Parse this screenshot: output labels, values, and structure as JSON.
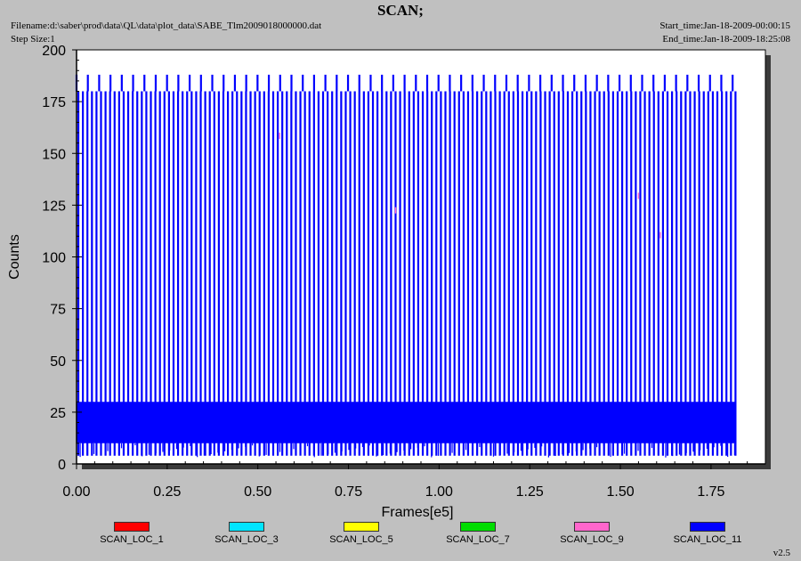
{
  "header": {
    "title": "SCAN;",
    "filename": "Filename:d:\\saber\\prod\\data\\QL\\data\\plot_data\\SABE_Tlm2009018000000.dat",
    "step_size": "Step Size:1",
    "start_time": "Start_time:Jan-18-2009-00:00:15",
    "end_time": "End_time:Jan-18-2009-18:25:08"
  },
  "version": "v2.5",
  "chart_data": {
    "type": "line",
    "title": "SCAN;",
    "xlabel": "Frames[e5]",
    "ylabel": "Counts",
    "xlim": [
      0,
      1.9
    ],
    "ylim": [
      0,
      200
    ],
    "x_ticks": [
      "0.00",
      "0.25",
      "0.50",
      "0.75",
      "1.00",
      "1.25",
      "1.50",
      "1.75"
    ],
    "x_tick_values": [
      0,
      0.25,
      0.5,
      0.75,
      1.0,
      1.25,
      1.5,
      1.75
    ],
    "y_ticks": [
      "0",
      "25",
      "50",
      "75",
      "100",
      "125",
      "150",
      "175",
      "200"
    ],
    "y_tick_values": [
      0,
      25,
      50,
      75,
      100,
      125,
      150,
      175,
      200
    ],
    "grid": false,
    "legend_position": "bottom",
    "data_extent_x": [
      0,
      1.82
    ],
    "series": [
      {
        "name": "SCAN_LOC_1",
        "color": "#ff0000"
      },
      {
        "name": "SCAN_LOC_3",
        "color": "#00e5ff"
      },
      {
        "name": "SCAN_LOC_5",
        "color": "#ffff00"
      },
      {
        "name": "SCAN_LOC_7",
        "color": "#00dd00"
      },
      {
        "name": "SCAN_LOC_9",
        "color": "#ff66cc"
      },
      {
        "name": "SCAN_LOC_11",
        "color": "#0000ff",
        "pattern": {
          "baseline_band": [
            10,
            30
          ],
          "spike_peak": 180,
          "tall_spike_peak": 188,
          "spike_spacing": 0.0125,
          "tall_spike_spacing": 0.0312
        }
      }
    ]
  }
}
